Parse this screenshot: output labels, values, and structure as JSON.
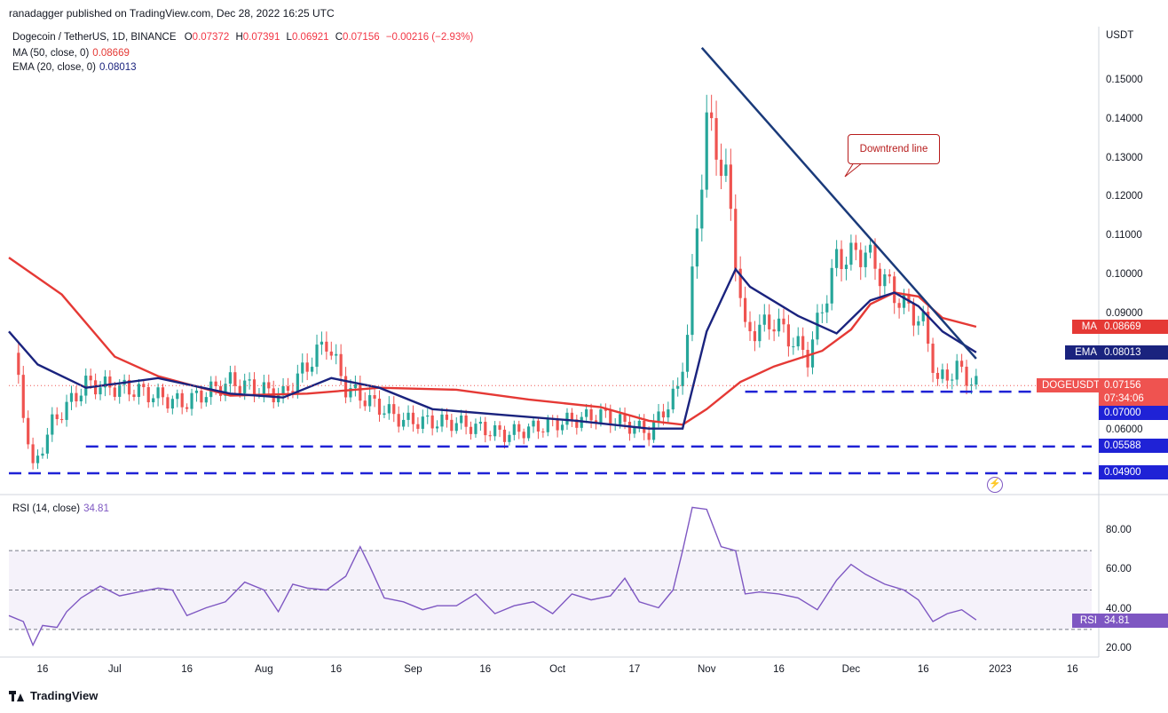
{
  "header": {
    "publisher": "ranadagger published on TradingView.com, Dec 28, 2022 16:25 UTC"
  },
  "legend": {
    "symbol": "Dogecoin / TetherUS, 1D, BINANCE",
    "o_label": "O",
    "o": "0.07372",
    "h_label": "H",
    "h": "0.07391",
    "l_label": "L",
    "l": "0.06921",
    "c_label": "C",
    "c": "0.07156",
    "change": "−0.00216 (−2.93%)",
    "ma_label": "MA (50, close, 0)",
    "ma_value": "0.08669",
    "ema_label": "EMA (20, close, 0)",
    "ema_value": "0.08013",
    "rsi_label": "RSI (14, close)",
    "rsi_value": "34.81"
  },
  "price_axis": {
    "unit": "USDT",
    "ticks": [
      "0.15000",
      "0.14000",
      "0.13000",
      "0.12000",
      "0.11000",
      "0.10000",
      "0.09000",
      "0.06000"
    ]
  },
  "rsi_axis": {
    "ticks": [
      "80.00",
      "60.00",
      "40.00",
      "20.00"
    ]
  },
  "time_axis": {
    "labels": [
      "16",
      "Jul",
      "16",
      "Aug",
      "16",
      "Sep",
      "16",
      "Oct",
      "17",
      "Nov",
      "16",
      "Dec",
      "16",
      "2023",
      "16"
    ]
  },
  "tags": {
    "ma_name": "MA",
    "ma_value": "0.08669",
    "ema_name": "EMA",
    "ema_value": "0.08013",
    "symbol_name": "DOGEUSDT",
    "last_price": "0.07156",
    "countdown": "07:34:06",
    "level_1": "0.07000",
    "level_2": "0.05588",
    "level_3": "0.04900",
    "rsi_name": "RSI",
    "rsi_value": "34.81"
  },
  "annotation": {
    "downtrend": "Downtrend line"
  },
  "footer": {
    "brand": "TradingView"
  },
  "colors": {
    "up": "#26a69a",
    "down": "#ef5350",
    "ma": "#e53935",
    "ema": "#1a237e",
    "trendline": "#1a3a7a",
    "support": "#1f22d6",
    "rsi": "#7e57c2"
  },
  "chart_data": [
    {
      "type": "candlestick",
      "title": "Dogecoin / TetherUS, 1D, BINANCE",
      "x_range": [
        "2022-06-09",
        "2023-01-20"
      ],
      "ylim": [
        0.046,
        0.159
      ],
      "ylabel": "USDT",
      "series": [
        {
          "name": "MA (50, close, 0)",
          "points": [
            [
              "2022-06-09",
              0.1045
            ],
            [
              "2022-06-20",
              0.095
            ],
            [
              "2022-07-01",
              0.079
            ],
            [
              "2022-07-10",
              0.074
            ],
            [
              "2022-07-25",
              0.069
            ],
            [
              "2022-08-10",
              0.0695
            ],
            [
              "2022-08-25",
              0.071
            ],
            [
              "2022-09-10",
              0.0705
            ],
            [
              "2022-09-25",
              0.068
            ],
            [
              "2022-10-10",
              0.066
            ],
            [
              "2022-10-20",
              0.0625
            ],
            [
              "2022-10-27",
              0.0615
            ],
            [
              "2022-11-01",
              0.0655
            ],
            [
              "2022-11-08",
              0.0725
            ],
            [
              "2022-11-15",
              0.0765
            ],
            [
              "2022-11-25",
              0.0805
            ],
            [
              "2022-12-01",
              0.086
            ],
            [
              "2022-12-05",
              0.0925
            ],
            [
              "2022-12-10",
              0.0955
            ],
            [
              "2022-12-15",
              0.0945
            ],
            [
              "2022-12-20",
              0.089
            ],
            [
              "2022-12-27",
              0.0867
            ]
          ]
        },
        {
          "name": "EMA (20, close, 0)",
          "points": [
            [
              "2022-06-09",
              0.0855
            ],
            [
              "2022-06-15",
              0.077
            ],
            [
              "2022-06-25",
              0.071
            ],
            [
              "2022-07-10",
              0.0735
            ],
            [
              "2022-07-25",
              0.0695
            ],
            [
              "2022-08-05",
              0.0685
            ],
            [
              "2022-08-15",
              0.0735
            ],
            [
              "2022-08-25",
              0.071
            ],
            [
              "2022-09-05",
              0.0655
            ],
            [
              "2022-09-20",
              0.064
            ],
            [
              "2022-10-05",
              0.0625
            ],
            [
              "2022-10-20",
              0.0605
            ],
            [
              "2022-10-27",
              0.0605
            ],
            [
              "2022-11-01",
              0.0855
            ],
            [
              "2022-11-07",
              0.1015
            ],
            [
              "2022-11-10",
              0.097
            ],
            [
              "2022-11-20",
              0.0895
            ],
            [
              "2022-11-28",
              0.085
            ],
            [
              "2022-12-05",
              0.0935
            ],
            [
              "2022-12-10",
              0.0955
            ],
            [
              "2022-12-15",
              0.092
            ],
            [
              "2022-12-20",
              0.0855
            ],
            [
              "2022-12-27",
              0.0801
            ]
          ]
        },
        {
          "name": "close",
          "points": [
            [
              "2022-06-10",
              0.08
            ],
            [
              "2022-06-14",
              0.05
            ],
            [
              "2022-06-18",
              0.062
            ],
            [
              "2022-06-25",
              0.072
            ],
            [
              "2022-07-05",
              0.0705
            ],
            [
              "2022-07-15",
              0.067
            ],
            [
              "2022-07-25",
              0.0725
            ],
            [
              "2022-08-05",
              0.069
            ],
            [
              "2022-08-14",
              0.083
            ],
            [
              "2022-08-18",
              0.071
            ],
            [
              "2022-08-30",
              0.0625
            ],
            [
              "2022-09-10",
              0.062
            ],
            [
              "2022-09-20",
              0.059
            ],
            [
              "2022-10-01",
              0.062
            ],
            [
              "2022-10-10",
              0.064
            ],
            [
              "2022-10-20",
              0.0595
            ],
            [
              "2022-10-26",
              0.0705
            ],
            [
              "2022-10-28",
              0.085
            ],
            [
              "2022-11-01",
              0.14
            ],
            [
              "2022-11-05",
              0.125
            ],
            [
              "2022-11-09",
              0.085
            ],
            [
              "2022-11-15",
              0.088
            ],
            [
              "2022-11-22",
              0.079
            ],
            [
              "2022-11-28",
              0.104
            ],
            [
              "2022-12-04",
              0.106
            ],
            [
              "2022-12-10",
              0.095
            ],
            [
              "2022-12-16",
              0.0875
            ],
            [
              "2022-12-19",
              0.0725
            ],
            [
              "2022-12-23",
              0.076
            ],
            [
              "2022-12-27",
              0.0716
            ]
          ]
        }
      ],
      "levels": [
        0.07,
        0.05588,
        0.049
      ],
      "trendline": [
        [
          "2022-10-31",
          0.1585
        ],
        [
          "2022-12-27",
          0.0785
        ]
      ]
    },
    {
      "type": "line",
      "title": "RSI (14, close)",
      "ylim": [
        15,
        97
      ],
      "bands": [
        30,
        50,
        70
      ],
      "series": [
        {
          "name": "RSI (14, close)",
          "points": [
            [
              "2022-06-09",
              37
            ],
            [
              "2022-06-12",
              34
            ],
            [
              "2022-06-14",
              22
            ],
            [
              "2022-06-16",
              32
            ],
            [
              "2022-06-19",
              31
            ],
            [
              "2022-06-21",
              39
            ],
            [
              "2022-06-24",
              46
            ],
            [
              "2022-06-28",
              52
            ],
            [
              "2022-07-02",
              47
            ],
            [
              "2022-07-06",
              49
            ],
            [
              "2022-07-10",
              51
            ],
            [
              "2022-07-13",
              50
            ],
            [
              "2022-07-16",
              37
            ],
            [
              "2022-07-20",
              41
            ],
            [
              "2022-07-24",
              44
            ],
            [
              "2022-07-28",
              54
            ],
            [
              "2022-08-01",
              50
            ],
            [
              "2022-08-04",
              39
            ],
            [
              "2022-08-07",
              53
            ],
            [
              "2022-08-10",
              51
            ],
            [
              "2022-08-14",
              50
            ],
            [
              "2022-08-18",
              57
            ],
            [
              "2022-08-21",
              72
            ],
            [
              "2022-08-23",
              62
            ],
            [
              "2022-08-26",
              46
            ],
            [
              "2022-08-30",
              44
            ],
            [
              "2022-09-03",
              40
            ],
            [
              "2022-09-06",
              42
            ],
            [
              "2022-09-10",
              42
            ],
            [
              "2022-09-14",
              48
            ],
            [
              "2022-09-18",
              38
            ],
            [
              "2022-09-22",
              42
            ],
            [
              "2022-09-26",
              44
            ],
            [
              "2022-09-30",
              38
            ],
            [
              "2022-10-04",
              48
            ],
            [
              "2022-10-08",
              45
            ],
            [
              "2022-10-12",
              47
            ],
            [
              "2022-10-15",
              56
            ],
            [
              "2022-10-18",
              44
            ],
            [
              "2022-10-22",
              41
            ],
            [
              "2022-10-25",
              50
            ],
            [
              "2022-10-27",
              70
            ],
            [
              "2022-10-29",
              92
            ],
            [
              "2022-11-01",
              91
            ],
            [
              "2022-11-04",
              72
            ],
            [
              "2022-11-07",
              70
            ],
            [
              "2022-11-09",
              48
            ],
            [
              "2022-11-12",
              49
            ],
            [
              "2022-11-16",
              48
            ],
            [
              "2022-11-20",
              46
            ],
            [
              "2022-11-24",
              40
            ],
            [
              "2022-11-28",
              55
            ],
            [
              "2022-12-01",
              63
            ],
            [
              "2022-12-04",
              58
            ],
            [
              "2022-12-08",
              53
            ],
            [
              "2022-12-12",
              50
            ],
            [
              "2022-12-15",
              45
            ],
            [
              "2022-12-18",
              34
            ],
            [
              "2022-12-21",
              38
            ],
            [
              "2022-12-24",
              40
            ],
            [
              "2022-12-27",
              34.81
            ]
          ]
        }
      ]
    }
  ]
}
